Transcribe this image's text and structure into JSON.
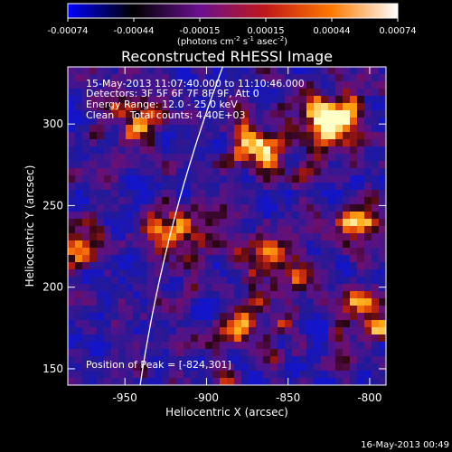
{
  "colorbar": {
    "ticks": [
      "-0.00074",
      "-0.00044",
      "-0.00015",
      "0.00015",
      "0.00044",
      "0.00074"
    ],
    "units_prefix": "(photons cm",
    "units_exp1": "-2",
    "units_mid1": " s",
    "units_exp2": "-1",
    "units_mid2": " asec",
    "units_exp3": "-2",
    "units_suffix": ")",
    "colors": [
      "#0000ff",
      "#000000",
      "#6a1090",
      "#c01818",
      "#ff7a00",
      "#ffffff"
    ]
  },
  "image": {
    "title": "Reconstructed RHESSI Image",
    "time_range": "15-May-2013 11:07:40.000 to 11:10:46.000",
    "detectors": "Detectors: 3F 5F 6F 7F 8F 9F, Att 0",
    "energy": "Energy Range: 12.0 - 25.0 keV",
    "clean": "Clean     Total counts: 4.40E+03",
    "peak": "Position of Peak = [-824,301]",
    "xlabel": "Heliocentric X (arcsec)",
    "ylabel": "Heliocentric Y (arcsec)",
    "xticks": [
      {
        "label": "-950",
        "value": -950
      },
      {
        "label": "-900",
        "value": -900
      },
      {
        "label": "-850",
        "value": -850
      },
      {
        "label": "-800",
        "value": -800
      }
    ],
    "yticks": [
      {
        "label": "150",
        "value": 150
      },
      {
        "label": "200",
        "value": 200
      },
      {
        "label": "250",
        "value": 250
      },
      {
        "label": "300",
        "value": 300
      }
    ],
    "xlim": [
      -985,
      -790
    ],
    "ylim": [
      140,
      335
    ],
    "limb_color": "#ffffff",
    "hot_spots": [
      {
        "x": -824,
        "y": 301
      },
      {
        "x": -978,
        "y": 226
      },
      {
        "x": -878,
        "y": 176
      },
      {
        "x": -858,
        "y": 218
      },
      {
        "x": -868,
        "y": 288
      },
      {
        "x": -808,
        "y": 240
      },
      {
        "x": -800,
        "y": 182
      },
      {
        "x": -945,
        "y": 300
      },
      {
        "x": -920,
        "y": 232
      }
    ]
  },
  "timestamp": "16-May-2013 00:49"
}
